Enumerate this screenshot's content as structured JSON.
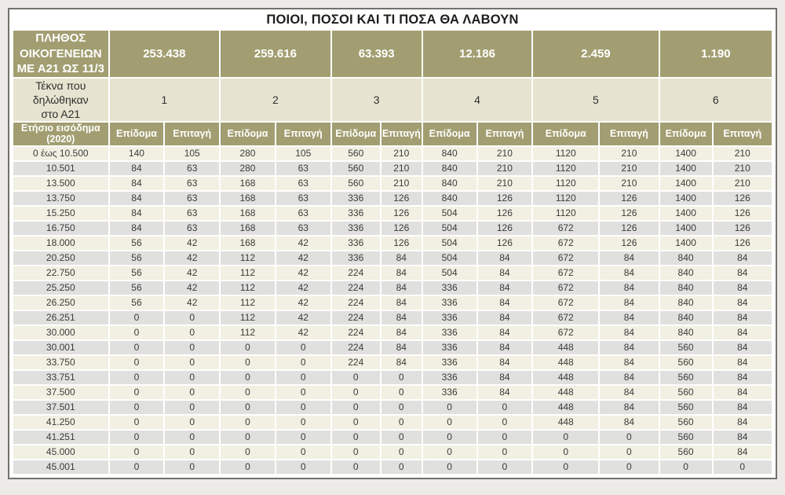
{
  "title": "ΠΟΙΟΙ, ΠΟΣΟΙ ΚΑΙ ΤΙ ΠΟΣΑ ΘΑ ΛΑΒΟΥΝ",
  "header": {
    "families_label": "ΠΛΗΘΟΣ\nΟΙΚΟΓΕΝΕΙΩΝ\nΜΕ Α21 ΩΣ 11/3",
    "family_counts": [
      "253.438",
      "259.616",
      "63.393",
      "12.186",
      "2.459",
      "1.190"
    ],
    "children_label": "Τέκνα που\nδηλώθηκαν\nστο Α21",
    "children_counts": [
      "1",
      "2",
      "3",
      "4",
      "5",
      "6"
    ],
    "income_label": "Ετήσιο εισόδημα\n(2020)",
    "subcol_labels": [
      "Επίδομα",
      "Επιταγή"
    ]
  },
  "rows": [
    {
      "income": "0 έως 10.500",
      "values": [
        140,
        105,
        280,
        105,
        560,
        210,
        840,
        210,
        1120,
        210,
        1400,
        210
      ]
    },
    {
      "income": "10.501",
      "values": [
        84,
        63,
        280,
        63,
        560,
        210,
        840,
        210,
        1120,
        210,
        1400,
        210
      ]
    },
    {
      "income": "13.500",
      "values": [
        84,
        63,
        168,
        63,
        560,
        210,
        840,
        210,
        1120,
        210,
        1400,
        210
      ]
    },
    {
      "income": "13.750",
      "values": [
        84,
        63,
        168,
        63,
        336,
        126,
        840,
        126,
        1120,
        126,
        1400,
        126
      ]
    },
    {
      "income": "15.250",
      "values": [
        84,
        63,
        168,
        63,
        336,
        126,
        504,
        126,
        1120,
        126,
        1400,
        126
      ]
    },
    {
      "income": "16.750",
      "values": [
        84,
        63,
        168,
        63,
        336,
        126,
        504,
        126,
        672,
        126,
        1400,
        126
      ]
    },
    {
      "income": "18.000",
      "values": [
        56,
        42,
        168,
        42,
        336,
        126,
        504,
        126,
        672,
        126,
        1400,
        126
      ]
    },
    {
      "income": "20.250",
      "values": [
        56,
        42,
        112,
        42,
        336,
        84,
        504,
        84,
        672,
        84,
        840,
        84
      ]
    },
    {
      "income": "22.750",
      "values": [
        56,
        42,
        112,
        42,
        224,
        84,
        504,
        84,
        672,
        84,
        840,
        84
      ]
    },
    {
      "income": "25.250",
      "values": [
        56,
        42,
        112,
        42,
        224,
        84,
        336,
        84,
        672,
        84,
        840,
        84
      ]
    },
    {
      "income": "26.250",
      "values": [
        56,
        42,
        112,
        42,
        224,
        84,
        336,
        84,
        672,
        84,
        840,
        84
      ]
    },
    {
      "income": "26.251",
      "values": [
        0,
        0,
        112,
        42,
        224,
        84,
        336,
        84,
        672,
        84,
        840,
        84
      ]
    },
    {
      "income": "30.000",
      "values": [
        0,
        0,
        112,
        42,
        224,
        84,
        336,
        84,
        672,
        84,
        840,
        84
      ]
    },
    {
      "income": "30.001",
      "values": [
        0,
        0,
        0,
        0,
        224,
        84,
        336,
        84,
        448,
        84,
        560,
        84
      ]
    },
    {
      "income": "33.750",
      "values": [
        0,
        0,
        0,
        0,
        224,
        84,
        336,
        84,
        448,
        84,
        560,
        84
      ]
    },
    {
      "income": "33.751",
      "values": [
        0,
        0,
        0,
        0,
        0,
        0,
        336,
        84,
        448,
        84,
        560,
        84
      ]
    },
    {
      "income": "37.500",
      "values": [
        0,
        0,
        0,
        0,
        0,
        0,
        336,
        84,
        448,
        84,
        560,
        84
      ]
    },
    {
      "income": "37.501",
      "values": [
        0,
        0,
        0,
        0,
        0,
        0,
        0,
        0,
        448,
        84,
        560,
        84
      ]
    },
    {
      "income": "41.250",
      "values": [
        0,
        0,
        0,
        0,
        0,
        0,
        0,
        0,
        448,
        84,
        560,
        84
      ]
    },
    {
      "income": "41.251",
      "values": [
        0,
        0,
        0,
        0,
        0,
        0,
        0,
        0,
        0,
        0,
        560,
        84
      ]
    },
    {
      "income": "45.000",
      "values": [
        0,
        0,
        0,
        0,
        0,
        0,
        0,
        0,
        0,
        0,
        560,
        84
      ]
    },
    {
      "income": "45.001",
      "values": [
        0,
        0,
        0,
        0,
        0,
        0,
        0,
        0,
        0,
        0,
        0,
        0
      ]
    }
  ],
  "colors": {
    "olive_header": "#a29e71",
    "pale_olive_header": "#e6e4d0",
    "row_cream": "#f1f0e2",
    "row_gray": "#e0e0df",
    "frame_border": "#72726c",
    "header_text": "#ffffff",
    "data_text": "#3b3b3b"
  }
}
